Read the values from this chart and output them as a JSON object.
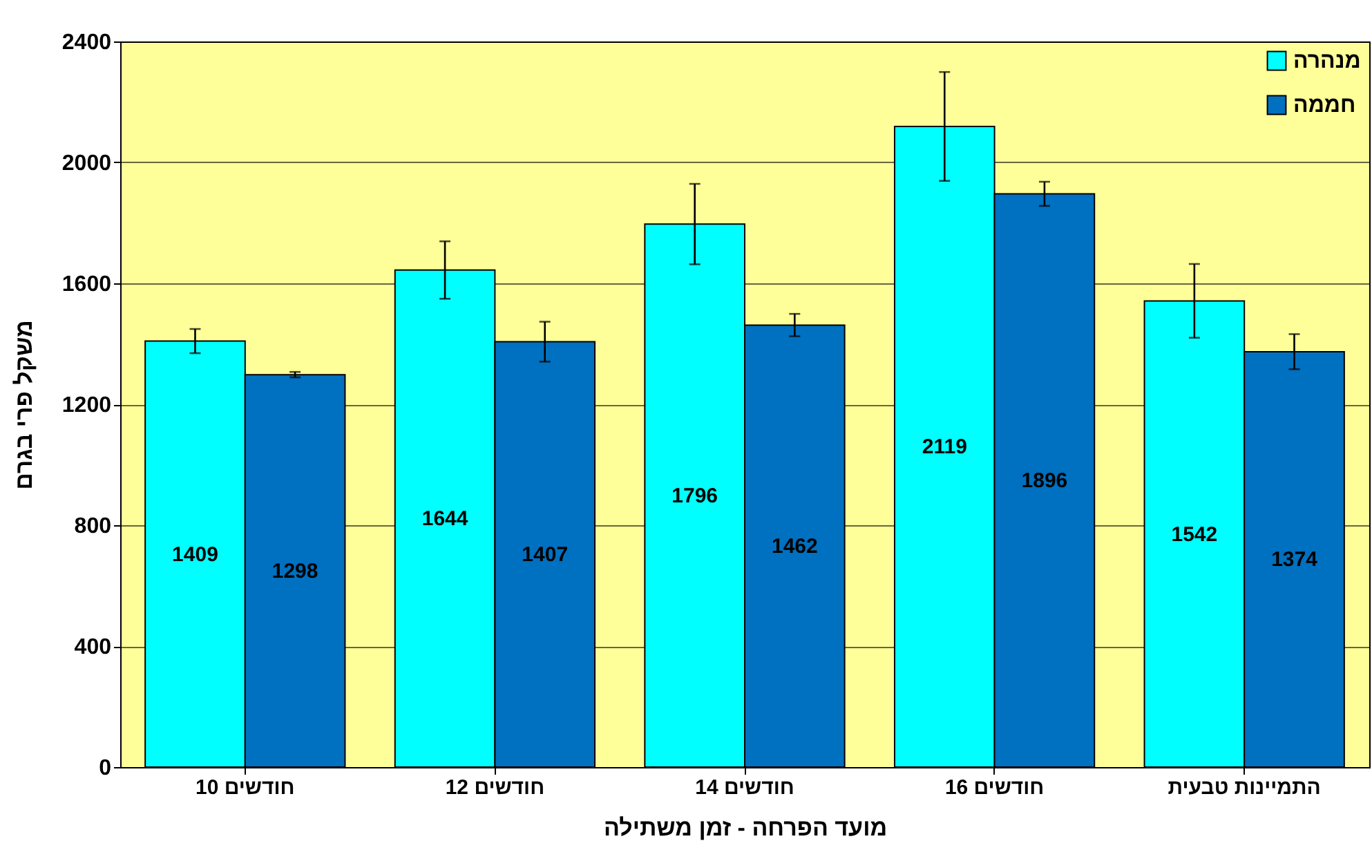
{
  "chart_data": {
    "type": "bar",
    "xlabel": "מועד הפרחה - זמן משתילה",
    "ylabel": "משקל פרי בגרם",
    "categories": [
      "10 חודשים",
      "12 חודשים",
      "14 חודשים",
      "16 חודשים",
      "התמיינות טבעית"
    ],
    "series": [
      {
        "name": "מנהרה",
        "color": "#00ffff",
        "values": [
          1409,
          1644,
          1796,
          2119,
          1542
        ],
        "errors": [
          40,
          95,
          133,
          180,
          122
        ]
      },
      {
        "name": "חממה",
        "color": "#0070c0",
        "values": [
          1298,
          1407,
          1462,
          1896,
          1374
        ],
        "errors": [
          9,
          66,
          37,
          40,
          58
        ]
      }
    ],
    "ylim": [
      0,
      2400
    ],
    "yticks": [
      0,
      400,
      800,
      1200,
      1600,
      2000,
      2400
    ],
    "grid": "y",
    "legend": "top right",
    "data_labels": true
  }
}
